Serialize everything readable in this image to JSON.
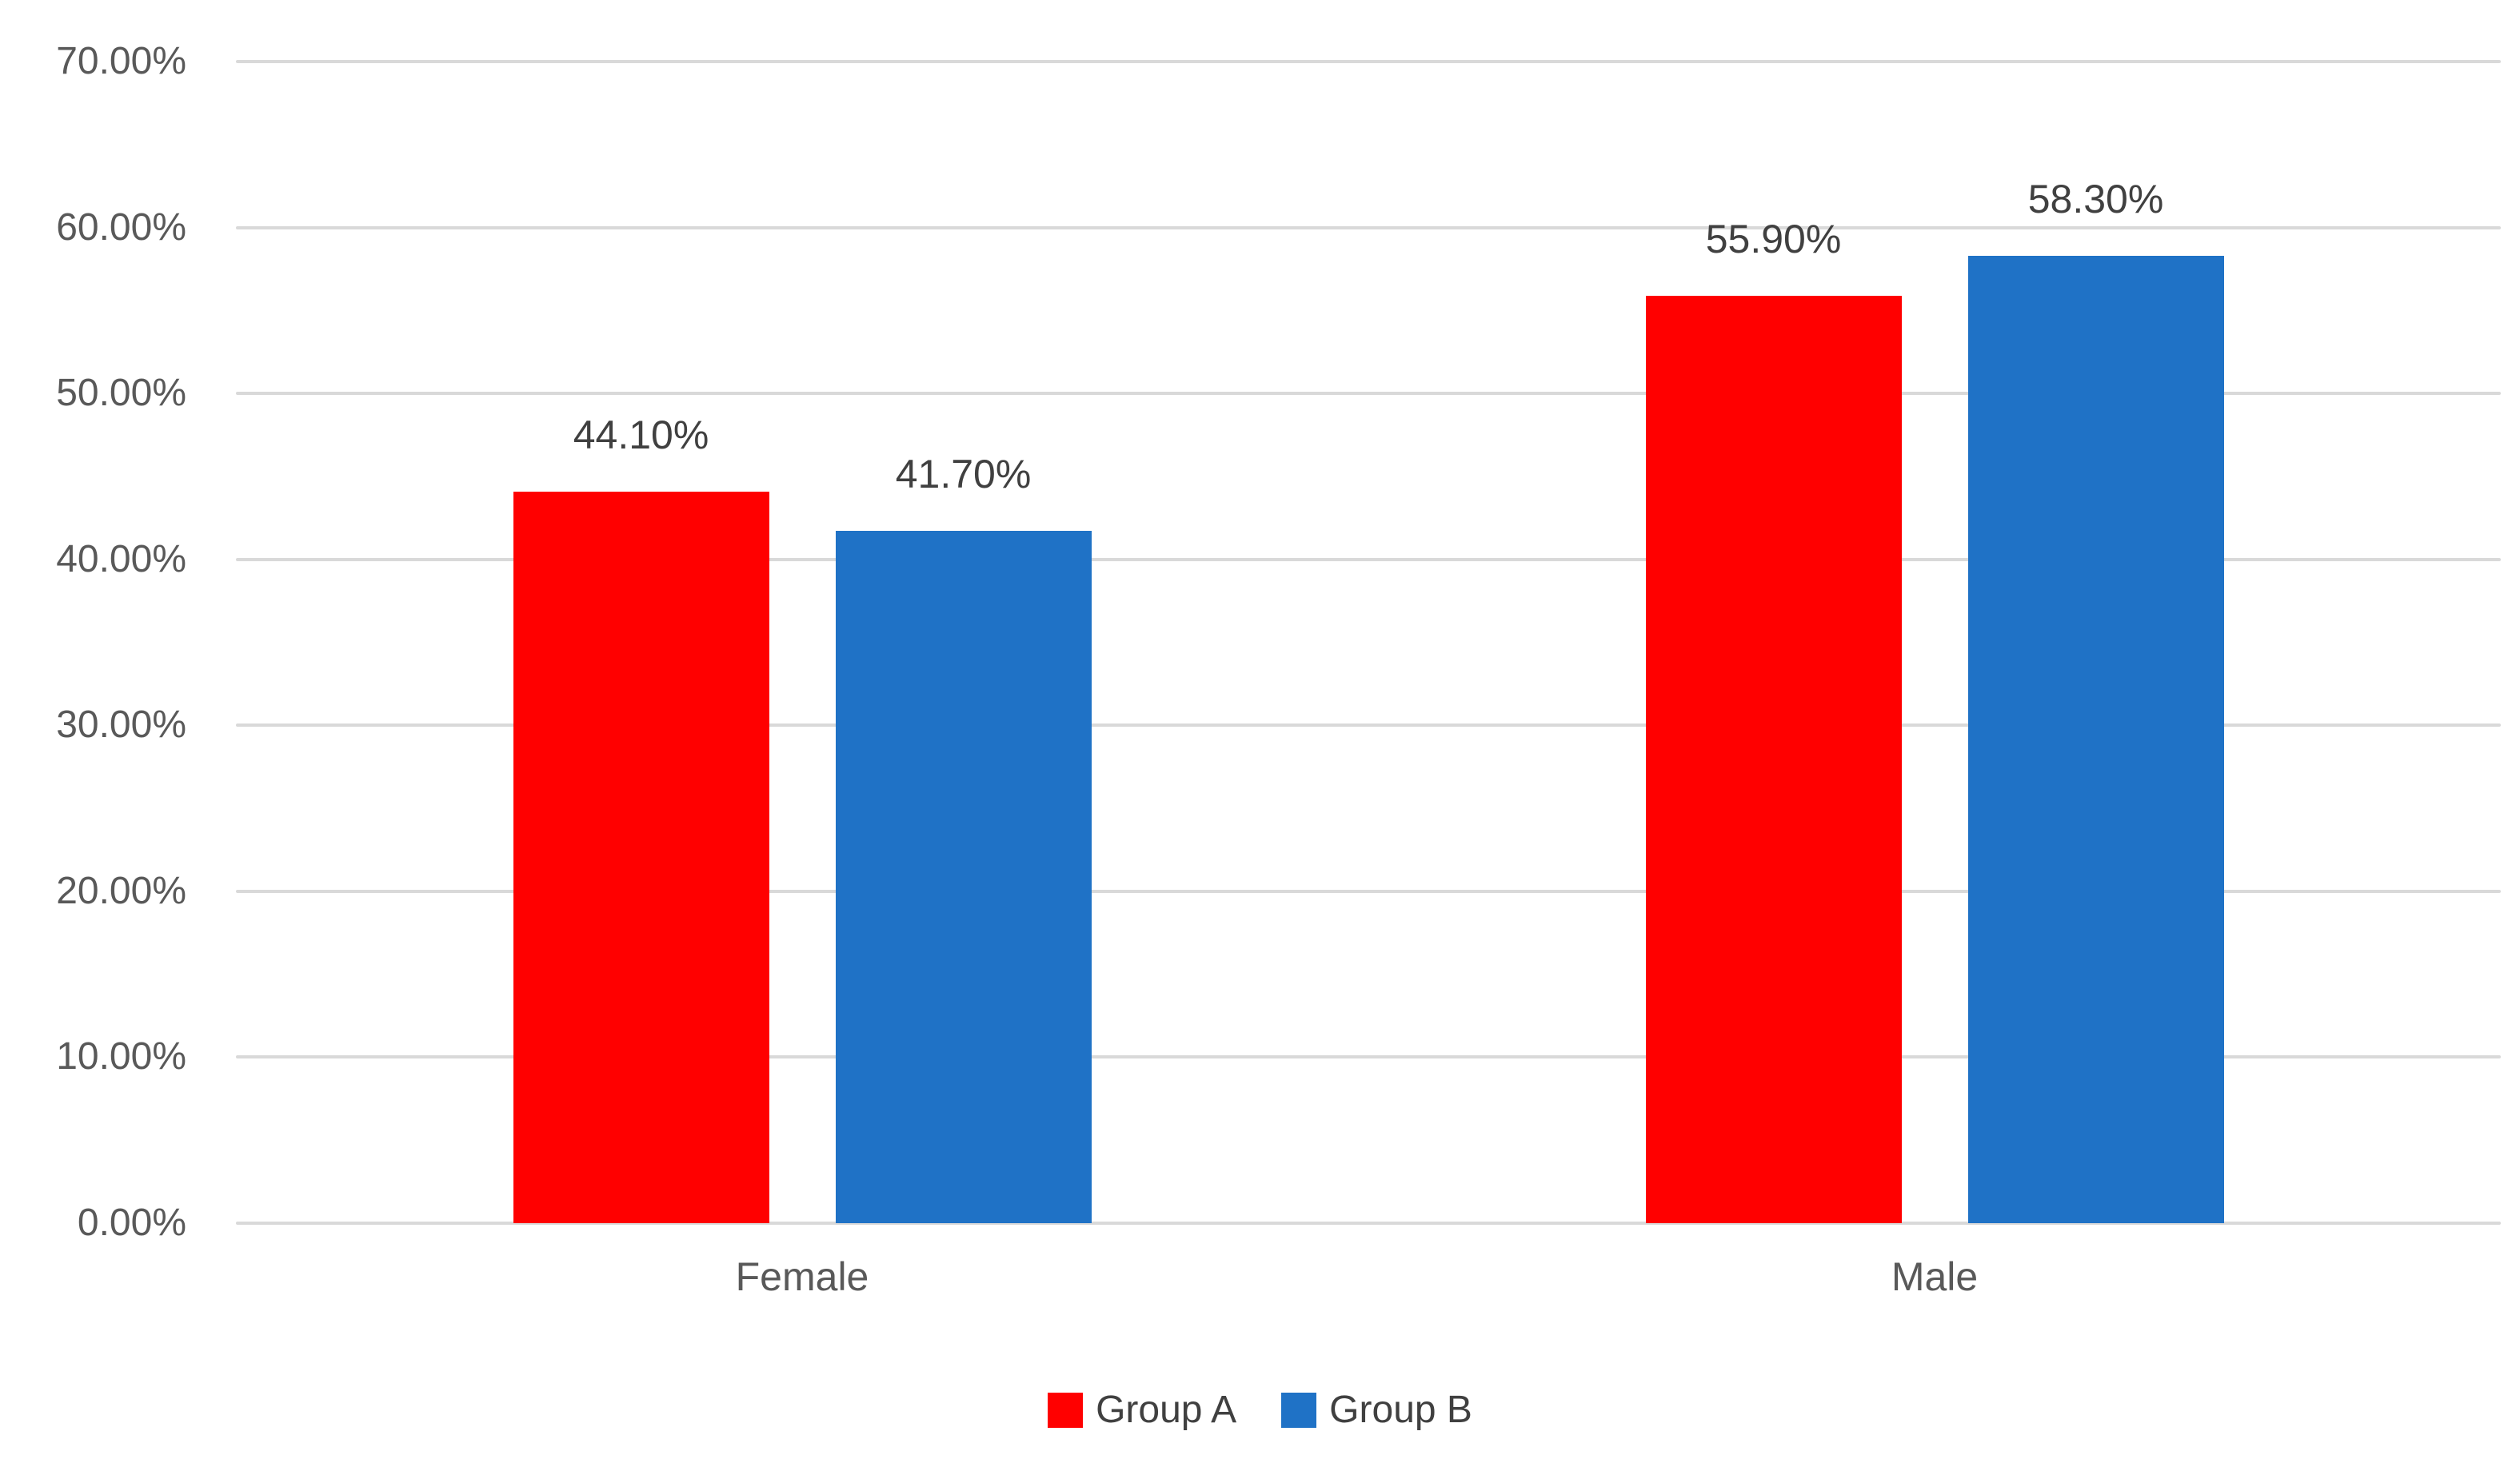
{
  "chart_data": {
    "type": "bar",
    "title": "",
    "xlabel": "",
    "ylabel": "",
    "categories": [
      "Female",
      "Male"
    ],
    "series": [
      {
        "name": "Group A",
        "color": "#FF0000",
        "values": [
          44.1,
          55.9
        ],
        "labels": [
          "44.10%",
          "55.90%"
        ]
      },
      {
        "name": "Group B",
        "color": "#1F72C6",
        "values": [
          41.7,
          58.3
        ],
        "labels": [
          "41.70%",
          "58.30%"
        ]
      }
    ],
    "y_axis": {
      "min": 0,
      "max": 70,
      "step": 10,
      "tick_labels": [
        "0.00%",
        "10.00%",
        "20.00%",
        "30.00%",
        "40.00%",
        "50.00%",
        "60.00%",
        "70.00%"
      ]
    },
    "grid": "horizontal",
    "gridline_color": "#D9D9D9",
    "background_color": "#FFFFFF",
    "legend_position": "bottom"
  }
}
